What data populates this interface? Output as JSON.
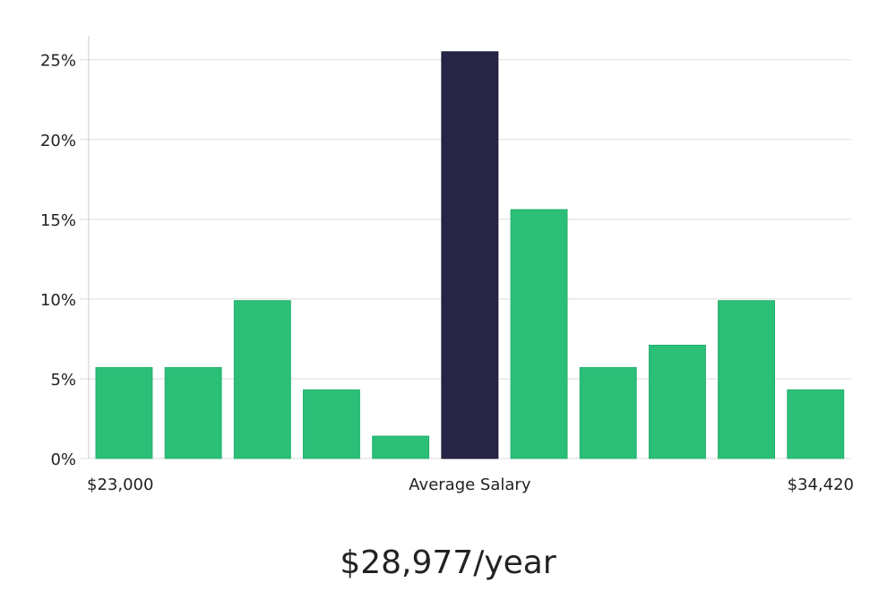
{
  "chart_data": {
    "type": "bar",
    "title": "",
    "xlabel": "Average Salary",
    "ylabel": "",
    "ylim": [
      0,
      26.5
    ],
    "yticks": [
      0,
      5,
      10,
      15,
      20,
      25
    ],
    "ytick_labels": [
      "0%",
      "5%",
      "10%",
      "15%",
      "20%",
      "25%"
    ],
    "x_range_labels": {
      "min": "$23,000",
      "max": "$34,420"
    },
    "values": [
      5.7,
      5.7,
      9.9,
      4.3,
      1.4,
      25.5,
      15.6,
      5.7,
      7.1,
      9.9,
      4.3
    ],
    "highlight_index": 5,
    "grid": true,
    "colors": {
      "bar": "#2bbf78",
      "highlight": "#272545",
      "grid": "#dddddd",
      "axis": "#cccccc"
    }
  },
  "summary": {
    "salary_text": "$28,977/year"
  }
}
